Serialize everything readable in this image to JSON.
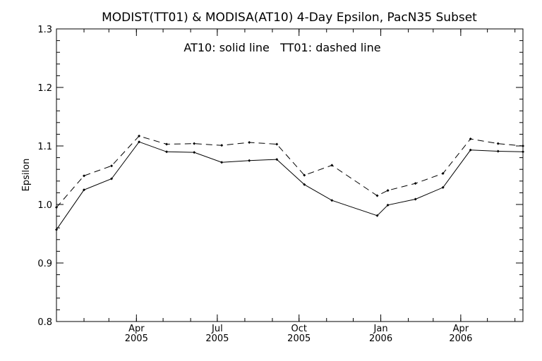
{
  "chart_data": {
    "type": "line",
    "title": "MODIST(TT01) & MODISA(AT10) 4-Day Epsilon, PacN35 Subset",
    "annotation": "AT10: solid line   TT01: dashed line",
    "xlabel": "",
    "ylabel": "Epsilon",
    "xlim": [
      "2005-01-01",
      "2006-06-10"
    ],
    "ylim": [
      0.8,
      1.3
    ],
    "yticks": [
      0.8,
      0.9,
      1.0,
      1.1,
      1.2,
      1.3
    ],
    "xticks": [
      {
        "date": "2005-04-01",
        "month": "Apr",
        "year": "2005"
      },
      {
        "date": "2005-07-01",
        "month": "Jul",
        "year": "2005"
      },
      {
        "date": "2005-10-01",
        "month": "Oct",
        "year": "2005"
      },
      {
        "date": "2006-01-01",
        "month": "Jan",
        "year": "2006"
      },
      {
        "date": "2006-04-01",
        "month": "Apr",
        "year": "2006"
      }
    ],
    "series": [
      {
        "name": "AT10",
        "style": "solid",
        "points": [
          {
            "x": "2005-01-01",
            "y": 0.957
          },
          {
            "x": "2005-02-01",
            "y": 1.025
          },
          {
            "x": "2005-03-04",
            "y": 1.044
          },
          {
            "x": "2005-04-04",
            "y": 1.107
          },
          {
            "x": "2005-05-05",
            "y": 1.09
          },
          {
            "x": "2005-06-05",
            "y": 1.089
          },
          {
            "x": "2005-07-06",
            "y": 1.072
          },
          {
            "x": "2005-08-06",
            "y": 1.075
          },
          {
            "x": "2005-09-06",
            "y": 1.077
          },
          {
            "x": "2005-10-07",
            "y": 1.034
          },
          {
            "x": "2005-11-07",
            "y": 1.007
          },
          {
            "x": "2005-12-28",
            "y": 0.981
          },
          {
            "x": "2006-01-09",
            "y": 0.999
          },
          {
            "x": "2006-02-09",
            "y": 1.009
          },
          {
            "x": "2006-03-12",
            "y": 1.029
          },
          {
            "x": "2006-04-12",
            "y": 1.093
          },
          {
            "x": "2006-05-13",
            "y": 1.091
          },
          {
            "x": "2006-06-10",
            "y": 1.09
          }
        ]
      },
      {
        "name": "TT01",
        "style": "dashed",
        "points": [
          {
            "x": "2005-01-01",
            "y": 0.995
          },
          {
            "x": "2005-02-01",
            "y": 1.049
          },
          {
            "x": "2005-03-04",
            "y": 1.066
          },
          {
            "x": "2005-04-04",
            "y": 1.117
          },
          {
            "x": "2005-05-05",
            "y": 1.103
          },
          {
            "x": "2005-06-05",
            "y": 1.104
          },
          {
            "x": "2005-07-06",
            "y": 1.101
          },
          {
            "x": "2005-08-06",
            "y": 1.106
          },
          {
            "x": "2005-09-06",
            "y": 1.103
          },
          {
            "x": "2005-10-07",
            "y": 1.05
          },
          {
            "x": "2005-11-07",
            "y": 1.067
          },
          {
            "x": "2005-12-28",
            "y": 1.015
          },
          {
            "x": "2006-01-09",
            "y": 1.024
          },
          {
            "x": "2006-02-09",
            "y": 1.036
          },
          {
            "x": "2006-03-12",
            "y": 1.053
          },
          {
            "x": "2006-04-12",
            "y": 1.112
          },
          {
            "x": "2006-05-13",
            "y": 1.104
          },
          {
            "x": "2006-06-10",
            "y": 1.1
          }
        ]
      }
    ],
    "grid": false,
    "colors": {
      "line": "#000000",
      "background": "#ffffff"
    }
  }
}
